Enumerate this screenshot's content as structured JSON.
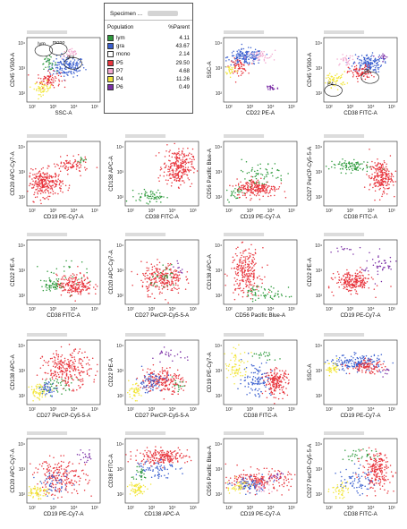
{
  "legend": {
    "specimen_label": "Specimen ...",
    "col_population": "Population",
    "col_parent": "%Parent",
    "rows": [
      {
        "name": "lym",
        "value": "4.11",
        "color": "#2e9a3c"
      },
      {
        "name": "gra",
        "value": "43.67",
        "color": "#3a5fcf"
      },
      {
        "name": "mono",
        "value": "2.14",
        "color": "#ffffff"
      },
      {
        "name": "P5",
        "value": "29.50",
        "color": "#e8343c"
      },
      {
        "name": "P7",
        "value": "4.68",
        "color": "#f2a8cf"
      },
      {
        "name": "P4",
        "value": "11.26",
        "color": "#f2e63a"
      },
      {
        "name": "P6",
        "value": "0.49",
        "color": "#7b2fa6"
      }
    ]
  },
  "chart_data": [
    {
      "type": "scatter",
      "id": "p1",
      "xlabel": "SSC-A",
      "ylabel": "CD45 V500-A",
      "xticks": [
        "10²",
        "10³",
        "10⁴",
        "10⁵"
      ],
      "gates": [
        "lym",
        "mono",
        "gra"
      ]
    },
    {
      "type": "scatter",
      "id": "p2",
      "xlabel": "CD22 PE-A",
      "ylabel": "SSC-A",
      "xticks": [
        "10²",
        "10³",
        "10⁴",
        "10⁵"
      ]
    },
    {
      "type": "scatter",
      "id": "p3",
      "xlabel": "CD38 FITC-A",
      "ylabel": "CD45 V500-A",
      "xticks": [
        "10²",
        "10³",
        "10⁴",
        "10⁵"
      ],
      "gates": [
        "P4",
        "P5"
      ]
    },
    {
      "type": "scatter",
      "id": "p4",
      "xlabel": "CD19 PE-Cy7-A",
      "ylabel": "CD20 APC-Cy7-A",
      "xticks": [
        "10²",
        "10³",
        "10⁴",
        "10⁵"
      ]
    },
    {
      "type": "scatter",
      "id": "p5",
      "xlabel": "CD38 FITC-A",
      "ylabel": "CD138 APC-A",
      "xticks": [
        "10²",
        "10³",
        "10⁴",
        "10⁵"
      ]
    },
    {
      "type": "scatter",
      "id": "p6",
      "xlabel": "CD19 PE-Cy7-A",
      "ylabel": "CD56 Pacific Blue-A",
      "xticks": [
        "10²",
        "10³",
        "10⁴",
        "10⁵"
      ]
    },
    {
      "type": "scatter",
      "id": "p7",
      "xlabel": "CD38 FITC-A",
      "ylabel": "CD27 PerCP-Cy5-5-A",
      "xticks": [
        "10²",
        "10³",
        "10⁴",
        "10⁵"
      ]
    },
    {
      "type": "scatter",
      "id": "p8",
      "xlabel": "CD38 FITC-A",
      "ylabel": "CD22 PE-A",
      "xticks": [
        "10²",
        "10³",
        "10⁴",
        "10⁵"
      ]
    },
    {
      "type": "scatter",
      "id": "p9",
      "xlabel": "CD27 PerCP-Cy5-5-A",
      "ylabel": "CD20 APC-Cy7-A",
      "xticks": [
        "10²",
        "10³",
        "10⁴",
        "10⁵"
      ]
    },
    {
      "type": "scatter",
      "id": "p10",
      "xlabel": "CD56 Pacific Blue-A",
      "ylabel": "CD138 APC-A",
      "xticks": [
        "10²",
        "10³",
        "10⁴",
        "10⁵"
      ]
    },
    {
      "type": "scatter",
      "id": "p11",
      "xlabel": "CD19 PE-Cy7-A",
      "ylabel": "CD22 PE-A",
      "xticks": [
        "10²",
        "10³",
        "10⁴",
        "10⁵"
      ]
    },
    {
      "type": "scatter",
      "id": "p12",
      "xlabel": "CD27 PerCP-Cy5-5-A",
      "ylabel": "CD138 APC-A",
      "xticks": [
        "10²",
        "10³",
        "10⁴",
        "10⁵"
      ]
    },
    {
      "type": "scatter",
      "id": "p13",
      "xlabel": "CD27 PerCP-Cy5-5-A",
      "ylabel": "CD22 PE-A",
      "xticks": [
        "10²",
        "10³",
        "10⁴",
        "10⁵"
      ]
    },
    {
      "type": "scatter",
      "id": "p14",
      "xlabel": "CD38 FITC-A",
      "ylabel": "CD19 PE-Cy7-A",
      "xticks": [
        "10²",
        "10³",
        "10⁴",
        "10⁵"
      ]
    },
    {
      "type": "scatter",
      "id": "p15",
      "xlabel": "CD19 PE-Cy7-A",
      "ylabel": "SSC-A",
      "xticks": [
        "10²",
        "10³",
        "10⁴",
        "10⁵"
      ]
    },
    {
      "type": "scatter",
      "id": "p16",
      "xlabel": "CD19 PE-Cy7-A",
      "ylabel": "CD20 APC-Cy7-A",
      "xticks": [
        "10²",
        "10³",
        "10⁴",
        "10⁵"
      ]
    },
    {
      "type": "scatter",
      "id": "p17",
      "xlabel": "CD138 APC-A",
      "ylabel": "CD38 FITC-A",
      "xticks": [
        "10²",
        "10³",
        "10⁴",
        "10⁵"
      ]
    },
    {
      "type": "scatter",
      "id": "p18",
      "xlabel": "CD19 PE-Cy7-A",
      "ylabel": "CD56 Pacific Blue-A",
      "xticks": [
        "10²",
        "10³",
        "10⁴",
        "10⁵"
      ]
    },
    {
      "type": "scatter",
      "id": "p19",
      "xlabel": "CD38 FITC-A",
      "ylabel": "CD27 PerCP-Cy5-5-A",
      "xticks": [
        "10²",
        "10³",
        "10⁴",
        "10⁵"
      ]
    }
  ]
}
